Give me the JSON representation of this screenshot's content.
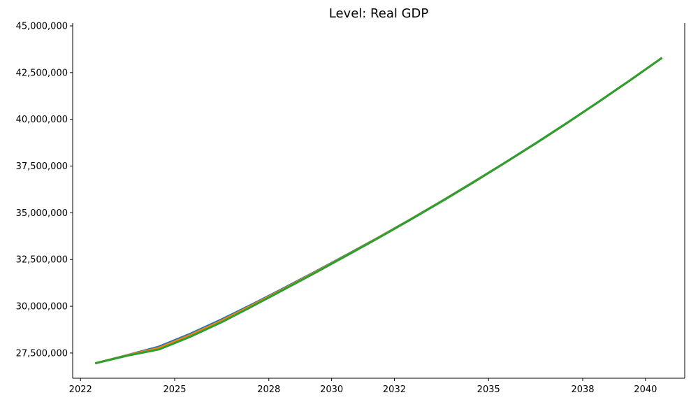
{
  "chart_data": {
    "type": "line",
    "title": "Level: Real GDP",
    "xlabel": "",
    "ylabel": "",
    "x": [
      2022.5,
      2023.5,
      2024.5,
      2025.5,
      2026.5,
      2027.5,
      2028.5,
      2029.5,
      2030.5,
      2031.5,
      2032.5,
      2033.5,
      2034.5,
      2035.5,
      2036.5,
      2037.5,
      2038.5,
      2039.5,
      2040.5
    ],
    "xlim": [
      2021.75,
      2041.25
    ],
    "ylim": [
      26150000,
      45150000
    ],
    "grid": false,
    "x_ticks": [
      {
        "value": 2022,
        "label": "2022"
      },
      {
        "value": 2025,
        "label": "2025"
      },
      {
        "value": 2028,
        "label": "2028"
      },
      {
        "value": 2030,
        "label": "2030"
      },
      {
        "value": 2032,
        "label": "2032"
      },
      {
        "value": 2035,
        "label": "2035"
      },
      {
        "value": 2038,
        "label": "2038"
      },
      {
        "value": 2040,
        "label": "2040"
      }
    ],
    "y_ticks": [
      {
        "value": 27500000,
        "label": "27,500,000"
      },
      {
        "value": 30000000,
        "label": "30,000,000"
      },
      {
        "value": 32500000,
        "label": "32,500,000"
      },
      {
        "value": 35000000,
        "label": "35,000,000"
      },
      {
        "value": 37500000,
        "label": "37,500,000"
      },
      {
        "value": 40000000,
        "label": "40,000,000"
      },
      {
        "value": 42500000,
        "label": "42,500,000"
      },
      {
        "value": 45000000,
        "label": "45,000,000"
      }
    ],
    "series": [
      {
        "color": "#1f77b4",
        "values": [
          26960000,
          27390000,
          27840000,
          28530000,
          29300000,
          30130000,
          30990000,
          31870000,
          32770000,
          33690000,
          34640000,
          35620000,
          36630000,
          37660000,
          38720000,
          39810000,
          40930000,
          42080000,
          43260000
        ]
      },
      {
        "color": "#ff7f0e",
        "values": [
          26960000,
          27380000,
          27770000,
          28460000,
          29230000,
          30080000,
          30950000,
          31840000,
          32750000,
          33680000,
          34630000,
          35610000,
          36620000,
          37650000,
          38710000,
          39800000,
          40930000,
          42080000,
          43260000
        ]
      },
      {
        "color": "#2ca02c",
        "values": [
          26960000,
          27360000,
          27690000,
          28370000,
          29150000,
          30020000,
          30910000,
          31810000,
          32730000,
          33660000,
          34620000,
          35600000,
          36610000,
          37650000,
          38710000,
          39800000,
          40930000,
          42080000,
          43260000
        ]
      }
    ]
  }
}
